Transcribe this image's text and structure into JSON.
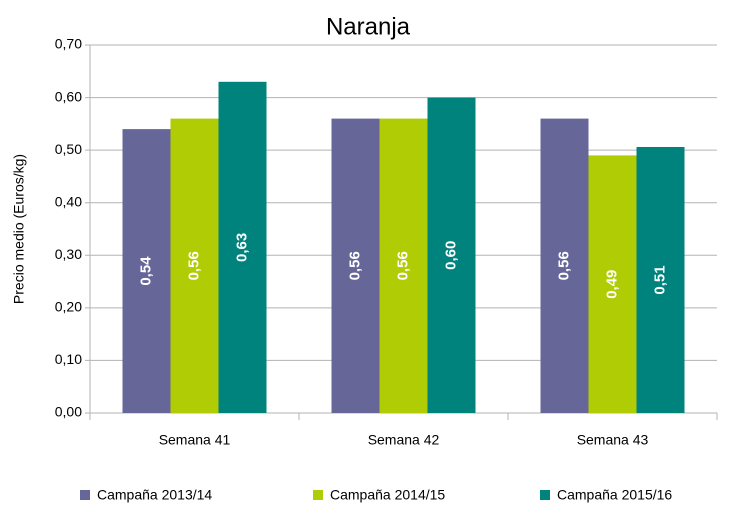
{
  "chart_data": {
    "type": "bar",
    "title": "Naranja",
    "y_label": "Precio medio (Euros/kg)",
    "categories": [
      "Semana 41",
      "Semana 42",
      "Semana 43"
    ],
    "series": [
      {
        "name": "Campaña 2013/14",
        "color": "#666699",
        "values": [
          0.54,
          0.56,
          0.56
        ],
        "value_labels": [
          "0,54",
          "0,56",
          "0,56"
        ]
      },
      {
        "name": "Campaña 2014/15",
        "color": "#b0cc05",
        "values": [
          0.56,
          0.56,
          0.49
        ],
        "value_labels": [
          "0,56",
          "0,56",
          "0,49"
        ]
      },
      {
        "name": "Campaña 2015/16",
        "color": "#00827d",
        "values": [
          0.63,
          0.6,
          0.506
        ],
        "value_labels": [
          "0,63",
          "0,60",
          "0,51"
        ]
      }
    ],
    "ylim": [
      0,
      0.7
    ],
    "yticks": [
      {
        "value": 0,
        "label": "0,00"
      },
      {
        "value": 0.1,
        "label": "0,10"
      },
      {
        "value": 0.2,
        "label": "0,20"
      },
      {
        "value": 0.3,
        "label": "0,30"
      },
      {
        "value": 0.4,
        "label": "0,40"
      },
      {
        "value": 0.5,
        "label": "0,50"
      },
      {
        "value": 0.6,
        "label": "0,60"
      },
      {
        "value": 0.7,
        "label": "0,70"
      }
    ],
    "grid": true,
    "legend": "bottom"
  }
}
